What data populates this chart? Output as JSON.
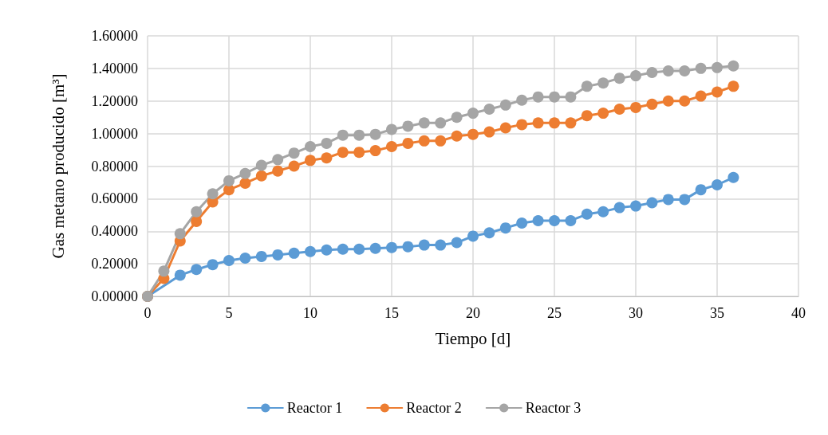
{
  "chart_data": {
    "type": "line",
    "xlabel": "Tiempo [d]",
    "ylabel": "Gas metano producido [m³]",
    "x": [
      0,
      1,
      2,
      3,
      4,
      5,
      6,
      7,
      8,
      9,
      10,
      11,
      12,
      13,
      14,
      15,
      16,
      17,
      18,
      19,
      20,
      21,
      22,
      23,
      24,
      25,
      26,
      27,
      28,
      29,
      30,
      31,
      32,
      33,
      34,
      35,
      36
    ],
    "series": [
      {
        "name": "Reactor 1",
        "color": "#5b9bd5",
        "values": [
          0,
          null,
          0.13,
          0.165,
          0.195,
          0.22,
          0.235,
          0.245,
          0.255,
          0.265,
          0.275,
          0.285,
          0.29,
          0.29,
          0.295,
          0.3,
          0.305,
          0.315,
          0.315,
          0.33,
          0.37,
          0.39,
          0.42,
          0.45,
          0.465,
          0.465,
          0.465,
          0.505,
          0.52,
          0.545,
          0.555,
          0.575,
          0.595,
          0.595,
          0.655,
          0.685,
          0.73
        ]
      },
      {
        "name": "Reactor 2",
        "color": "#ed7d31",
        "values": [
          0,
          0.11,
          0.34,
          0.46,
          0.58,
          0.655,
          0.695,
          0.74,
          0.77,
          0.8,
          0.835,
          0.85,
          0.885,
          0.885,
          0.895,
          0.92,
          0.94,
          0.955,
          0.955,
          0.985,
          0.995,
          1.01,
          1.035,
          1.055,
          1.065,
          1.065,
          1.065,
          1.11,
          1.125,
          1.15,
          1.16,
          1.18,
          1.2,
          1.2,
          1.23,
          1.255,
          1.29
        ]
      },
      {
        "name": "Reactor 3",
        "color": "#a5a5a5",
        "values": [
          0,
          0.155,
          0.385,
          0.52,
          0.63,
          0.71,
          0.755,
          0.805,
          0.84,
          0.88,
          0.92,
          0.94,
          0.99,
          0.99,
          0.995,
          1.025,
          1.045,
          1.065,
          1.065,
          1.1,
          1.125,
          1.15,
          1.175,
          1.205,
          1.225,
          1.225,
          1.225,
          1.29,
          1.31,
          1.34,
          1.355,
          1.375,
          1.385,
          1.385,
          1.4,
          1.405,
          1.415
        ]
      }
    ],
    "xlim": [
      0,
      40
    ],
    "xticks": [
      0,
      5,
      10,
      15,
      20,
      25,
      30,
      35,
      40
    ],
    "ylim": [
      0,
      1.6
    ],
    "yticks": [
      {
        "value": 0,
        "label": "0.00000"
      },
      {
        "value": 0.2,
        "label": "0.20000"
      },
      {
        "value": 0.4,
        "label": "0.40000"
      },
      {
        "value": 0.6,
        "label": "0.60000"
      },
      {
        "value": 0.8,
        "label": "0.80000"
      },
      {
        "value": 1,
        "label": "1.00000"
      },
      {
        "value": 1.2,
        "label": "1.20000"
      },
      {
        "value": 1.4,
        "label": "1.40000"
      },
      {
        "value": 1.6,
        "label": "1.60000"
      }
    ],
    "grid": true,
    "legend": "bottom",
    "marker": "circle",
    "line_style": "solid"
  }
}
